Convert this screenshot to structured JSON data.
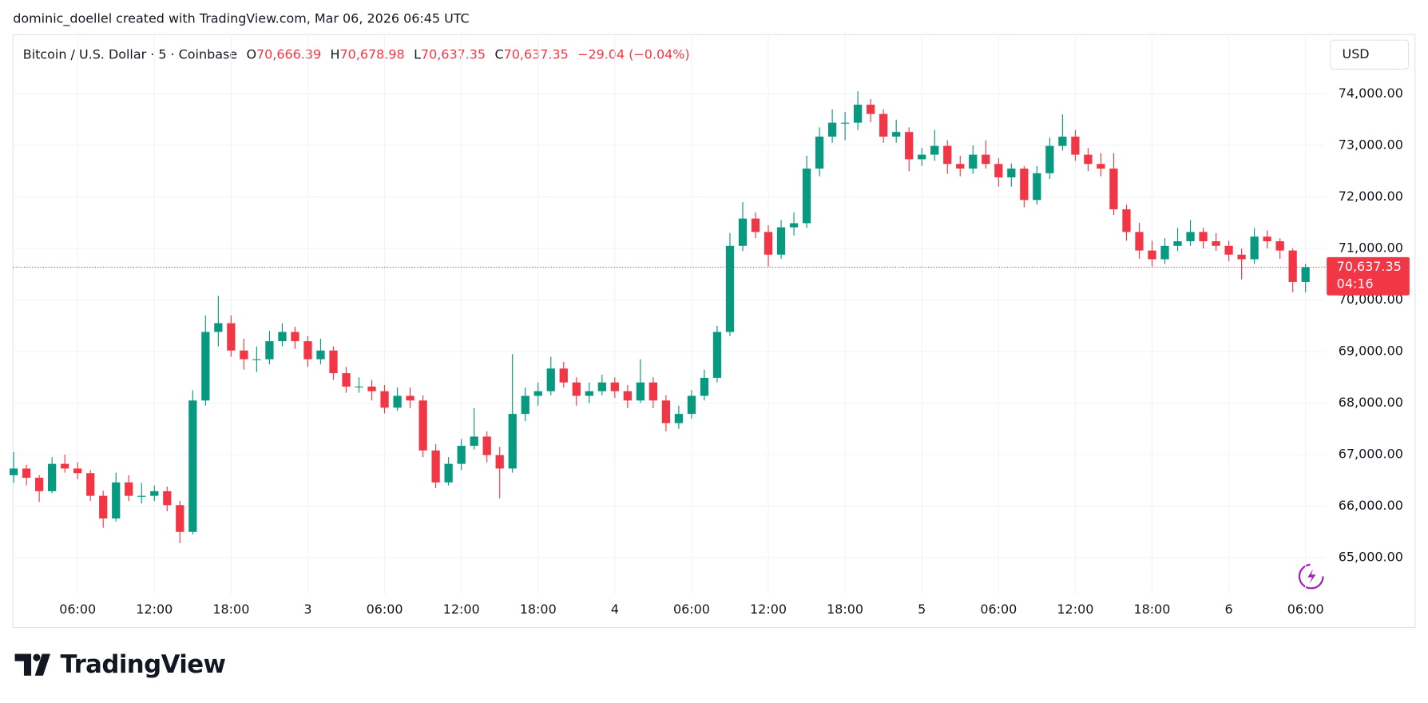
{
  "header": {
    "attribution": "dominic_doellel created with TradingView.com, Mar 06, 2026 06:45 UTC",
    "logo": "TradingView"
  },
  "chart_data": {
    "type": "candlestick",
    "symbol": "Bitcoin / U.S. Dollar · 5 · Coinbase",
    "ohlc_legend": [
      {
        "prefix": "O",
        "value": "70,666.39"
      },
      {
        "prefix": "H",
        "value": "70,678.98"
      },
      {
        "prefix": "L",
        "value": "70,637.35"
      },
      {
        "prefix": "C",
        "value": "70,637.35"
      }
    ],
    "change": "−29.04 (−0.04%)",
    "currency": "USD",
    "last_price": {
      "value": 70637.35,
      "label": "70,637.35"
    },
    "countdown": "04:16",
    "up_color": "#089981",
    "down_color": "#f23645",
    "grid": true,
    "ylim": [
      64300,
      75150
    ],
    "yticks": [
      {
        "value": 65000,
        "label": "65,000.00"
      },
      {
        "value": 66000,
        "label": "66,000.00"
      },
      {
        "value": 67000,
        "label": "67,000.00"
      },
      {
        "value": 68000,
        "label": "68,000.00"
      },
      {
        "value": 69000,
        "label": "69,000.00"
      },
      {
        "value": 70000,
        "label": "70,000.00"
      },
      {
        "value": 71000,
        "label": "71,000.00"
      },
      {
        "value": 72000,
        "label": "72,000.00"
      },
      {
        "value": 73000,
        "label": "73,000.00"
      },
      {
        "value": 74000,
        "label": "74,000.00"
      }
    ],
    "categories": [
      null,
      null,
      null,
      null,
      null,
      "06:00",
      null,
      null,
      null,
      null,
      null,
      "12:00",
      null,
      null,
      null,
      null,
      null,
      "18:00",
      null,
      null,
      null,
      null,
      null,
      "3",
      null,
      null,
      null,
      null,
      null,
      "06:00",
      null,
      null,
      null,
      null,
      null,
      "12:00",
      null,
      null,
      null,
      null,
      null,
      "18:00",
      null,
      null,
      null,
      null,
      null,
      "4",
      null,
      null,
      null,
      null,
      null,
      "06:00",
      null,
      null,
      null,
      null,
      null,
      "12:00",
      null,
      null,
      null,
      null,
      null,
      "18:00",
      null,
      null,
      null,
      null,
      null,
      "5",
      null,
      null,
      null,
      null,
      null,
      "06:00",
      null,
      null,
      null,
      null,
      null,
      "12:00",
      null,
      null,
      null,
      null,
      null,
      "18:00",
      null,
      null,
      null,
      null,
      null,
      "6",
      null,
      null,
      null,
      null,
      null,
      "06:00"
    ],
    "ohlc": [
      [
        66600,
        67050,
        66450,
        66730
      ],
      [
        66730,
        66800,
        66400,
        66550
      ],
      [
        66550,
        66600,
        66080,
        66290
      ],
      [
        66290,
        66950,
        66250,
        66820
      ],
      [
        66820,
        67000,
        66650,
        66730
      ],
      [
        66730,
        66850,
        66520,
        66640
      ],
      [
        66640,
        66700,
        66100,
        66200
      ],
      [
        66200,
        66300,
        65580,
        65760
      ],
      [
        65760,
        66650,
        65700,
        66460
      ],
      [
        66460,
        66600,
        66100,
        66200
      ],
      [
        66200,
        66450,
        66050,
        66200
      ],
      [
        66200,
        66400,
        66100,
        66290
      ],
      [
        66290,
        66380,
        65900,
        66020
      ],
      [
        66020,
        66100,
        65280,
        65500
      ],
      [
        65500,
        68250,
        65450,
        68050
      ],
      [
        68050,
        69700,
        67950,
        69380
      ],
      [
        69380,
        70080,
        69100,
        69550
      ],
      [
        69550,
        69700,
        68900,
        69020
      ],
      [
        69020,
        69250,
        68650,
        68850
      ],
      [
        68850,
        69100,
        68600,
        68850
      ],
      [
        68850,
        69400,
        68750,
        69200
      ],
      [
        69200,
        69550,
        69100,
        69380
      ],
      [
        69380,
        69480,
        69050,
        69200
      ],
      [
        69200,
        69300,
        68700,
        68850
      ],
      [
        68850,
        69250,
        68750,
        69020
      ],
      [
        69020,
        69100,
        68450,
        68580
      ],
      [
        68580,
        68700,
        68200,
        68320
      ],
      [
        68320,
        68500,
        68200,
        68320
      ],
      [
        68320,
        68450,
        68050,
        68230
      ],
      [
        68230,
        68350,
        67800,
        67910
      ],
      [
        67910,
        68300,
        67850,
        68140
      ],
      [
        68140,
        68300,
        67900,
        68050
      ],
      [
        68050,
        68150,
        66950,
        67080
      ],
      [
        67080,
        67200,
        66350,
        66460
      ],
      [
        66460,
        66950,
        66400,
        66820
      ],
      [
        66820,
        67300,
        66700,
        67170
      ],
      [
        67170,
        67900,
        67100,
        67350
      ],
      [
        67350,
        67450,
        66850,
        66990
      ],
      [
        66990,
        67150,
        66150,
        66730
      ],
      [
        66730,
        68950,
        66650,
        67790
      ],
      [
        67790,
        68300,
        67650,
        68140
      ],
      [
        68140,
        68400,
        67950,
        68230
      ],
      [
        68230,
        68900,
        68150,
        68670
      ],
      [
        68670,
        68800,
        68300,
        68400
      ],
      [
        68400,
        68500,
        67950,
        68140
      ],
      [
        68140,
        68400,
        68000,
        68230
      ],
      [
        68230,
        68550,
        68150,
        68400
      ],
      [
        68400,
        68500,
        68100,
        68230
      ],
      [
        68230,
        68350,
        67900,
        68050
      ],
      [
        68050,
        68850,
        68000,
        68400
      ],
      [
        68400,
        68500,
        67900,
        68050
      ],
      [
        68050,
        68150,
        67450,
        67610
      ],
      [
        67610,
        67950,
        67500,
        67790
      ],
      [
        67790,
        68250,
        67700,
        68140
      ],
      [
        68140,
        68650,
        68050,
        68490
      ],
      [
        68490,
        69500,
        68400,
        69380
      ],
      [
        69380,
        71300,
        69300,
        71050
      ],
      [
        71050,
        71900,
        70950,
        71580
      ],
      [
        71580,
        71700,
        71200,
        71320
      ],
      [
        71320,
        71450,
        70650,
        70880
      ],
      [
        70880,
        71550,
        70800,
        71410
      ],
      [
        71410,
        71700,
        71250,
        71490
      ],
      [
        71490,
        72800,
        71400,
        72550
      ],
      [
        72550,
        73350,
        72400,
        73170
      ],
      [
        73170,
        73700,
        73050,
        73440
      ],
      [
        73440,
        73650,
        73100,
        73440
      ],
      [
        73440,
        74050,
        73300,
        73790
      ],
      [
        73790,
        73900,
        73450,
        73610
      ],
      [
        73610,
        73700,
        73050,
        73170
      ],
      [
        73170,
        73500,
        73050,
        73260
      ],
      [
        73260,
        73350,
        72500,
        72730
      ],
      [
        72730,
        72950,
        72600,
        72820
      ],
      [
        72820,
        73300,
        72700,
        72990
      ],
      [
        72990,
        73100,
        72450,
        72640
      ],
      [
        72640,
        72800,
        72400,
        72550
      ],
      [
        72550,
        73000,
        72450,
        72820
      ],
      [
        72820,
        73100,
        72550,
        72640
      ],
      [
        72640,
        72750,
        72200,
        72380
      ],
      [
        72380,
        72650,
        72200,
        72550
      ],
      [
        72550,
        72600,
        71800,
        71940
      ],
      [
        71940,
        72600,
        71850,
        72460
      ],
      [
        72460,
        73150,
        72350,
        72990
      ],
      [
        72990,
        73600,
        72900,
        73170
      ],
      [
        73170,
        73300,
        72700,
        72820
      ],
      [
        72820,
        72950,
        72500,
        72640
      ],
      [
        72640,
        72850,
        72400,
        72550
      ],
      [
        72550,
        72850,
        71650,
        71760
      ],
      [
        71760,
        71850,
        71150,
        71320
      ],
      [
        71320,
        71500,
        70800,
        70960
      ],
      [
        70960,
        71150,
        70650,
        70790
      ],
      [
        70790,
        71200,
        70700,
        71050
      ],
      [
        71050,
        71400,
        70950,
        71140
      ],
      [
        71140,
        71550,
        71050,
        71320
      ],
      [
        71320,
        71400,
        71000,
        71140
      ],
      [
        71140,
        71300,
        70950,
        71050
      ],
      [
        71050,
        71150,
        70750,
        70880
      ],
      [
        70880,
        71000,
        70400,
        70790
      ],
      [
        70790,
        71400,
        70700,
        71230
      ],
      [
        71230,
        71350,
        71000,
        71140
      ],
      [
        71140,
        71200,
        70800,
        70960
      ],
      [
        70960,
        71000,
        70150,
        70350
      ],
      [
        70350,
        70700,
        70150,
        70637.35
      ]
    ]
  }
}
